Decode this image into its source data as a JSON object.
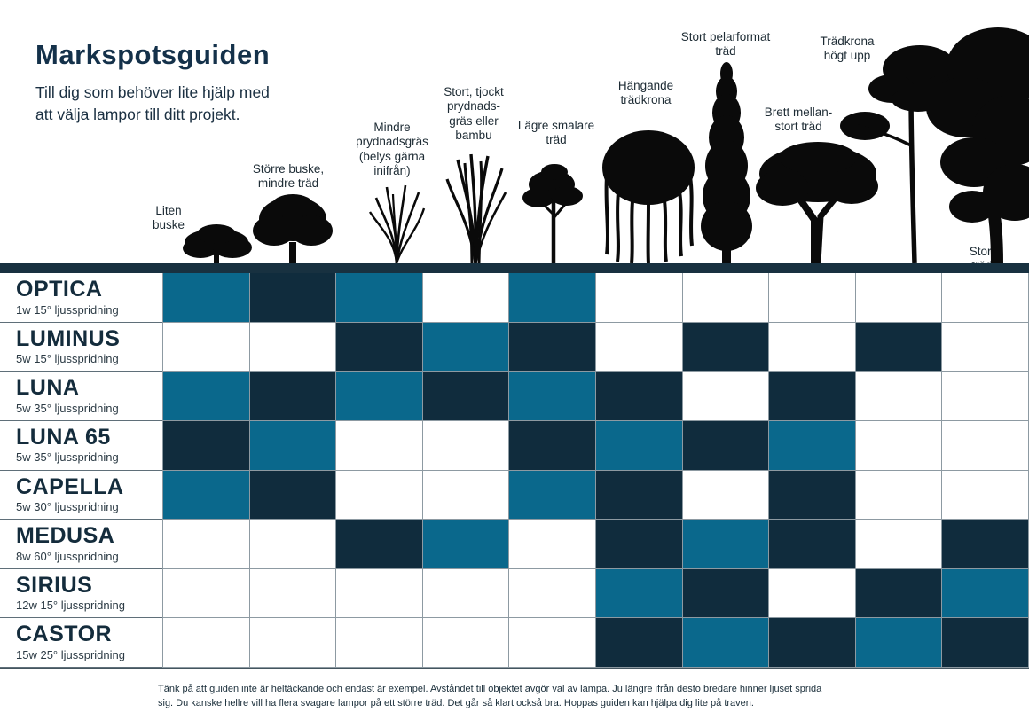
{
  "header": {
    "title": "Markspotsguiden",
    "subtitle": "Till dig som behöver lite hjälp med\natt välja lampor till ditt projekt."
  },
  "colors": {
    "teal": "#0a688c",
    "dark": "#102c3d",
    "white": "#ffffff",
    "bar": "#183140",
    "title_text": "#14314a"
  },
  "columns": [
    {
      "label": "Liten\nbuske",
      "icon": "small-bush-icon"
    },
    {
      "label": "Större buske,\nmindre träd",
      "icon": "large-bush-small-tree-icon"
    },
    {
      "label": "Mindre\nprydnadsgräs\n(belys gärna\ninifrån)",
      "icon": "small-ornamental-grass-icon"
    },
    {
      "label": "Stort, tjockt\nprydnads-\ngräs eller\nbambu",
      "icon": "large-grass-bamboo-icon"
    },
    {
      "label": "Lägre smalare\nträd",
      "icon": "low-narrow-tree-icon"
    },
    {
      "label": "Hängande\nträdkrona",
      "icon": "weeping-tree-icon"
    },
    {
      "label": "Stort pelarformat\nträd",
      "icon": "columnar-tree-icon"
    },
    {
      "label": "Brett mellan-\nstort träd",
      "icon": "broad-medium-tree-icon"
    },
    {
      "label": "Trädkrona\nhögt upp",
      "icon": "high-crown-tree-icon"
    },
    {
      "label": "Stort träd",
      "icon": "large-tree-icon"
    }
  ],
  "rows": [
    {
      "name": "OPTICA",
      "spec": "1w 15° ljusspridning"
    },
    {
      "name": "LUMINUS",
      "spec": "5w 15° ljusspridning"
    },
    {
      "name": "LUNA",
      "spec": "5w 35° ljusspridning"
    },
    {
      "name": "LUNA 65",
      "spec": "5w 35° ljusspridning"
    },
    {
      "name": "CAPELLA",
      "spec": "5w 30° ljusspridning"
    },
    {
      "name": "MEDUSA",
      "spec": "8w 60° ljusspridning"
    },
    {
      "name": "SIRIUS",
      "spec": "12w 15° ljusspridning"
    },
    {
      "name": "CASTOR",
      "spec": "15w 25° ljusspridning"
    }
  ],
  "chart_data": {
    "type": "heatmap",
    "title": "Markspotsguiden",
    "columns": [
      "Liten buske",
      "Större buske, mindre träd",
      "Mindre prydnadsgräs (belys gärna inifrån)",
      "Stort, tjockt prydnadsgräs eller bambu",
      "Lägre smalare träd",
      "Hängande trädkrona",
      "Stort pelarformat träd",
      "Brett mellanstort träd",
      "Trädkrona högt upp",
      "Stort träd"
    ],
    "rows": [
      "OPTICA 1w 15°",
      "LUMINUS 5w 15°",
      "LUNA 5w 35°",
      "LUNA 65 5w 35°",
      "CAPELLA 5w 30°",
      "MEDUSA 8w 60°",
      "SIRIUS 12w 15°",
      "CASTOR 15w 25°"
    ],
    "cell_states": [
      "teal",
      "dark",
      "white"
    ],
    "matrix": [
      [
        "teal",
        "dark",
        "teal",
        "white",
        "teal",
        "white",
        "white",
        "white",
        "white",
        "white"
      ],
      [
        "white",
        "white",
        "dark",
        "teal",
        "dark",
        "white",
        "dark",
        "white",
        "dark",
        "white"
      ],
      [
        "teal",
        "dark",
        "teal",
        "dark",
        "teal",
        "dark",
        "white",
        "dark",
        "white",
        "white"
      ],
      [
        "dark",
        "teal",
        "white",
        "white",
        "dark",
        "teal",
        "dark",
        "teal",
        "white",
        "white"
      ],
      [
        "teal",
        "dark",
        "white",
        "white",
        "teal",
        "dark",
        "white",
        "dark",
        "white",
        "white"
      ],
      [
        "white",
        "white",
        "dark",
        "teal",
        "white",
        "dark",
        "teal",
        "dark",
        "white",
        "dark"
      ],
      [
        "white",
        "white",
        "white",
        "white",
        "white",
        "teal",
        "dark",
        "white",
        "dark",
        "teal"
      ],
      [
        "white",
        "white",
        "white",
        "white",
        "white",
        "dark",
        "teal",
        "dark",
        "teal",
        "dark"
      ]
    ]
  },
  "footer": {
    "text": "Tänk på att guiden inte är heltäckande och endast är exempel. Avståndet till objektet avgör val av lampa. Ju längre ifrån desto bredare hinner ljuset sprida\nsig. Du kanske hellre vill ha flera svagare lampor på ett större träd. Det går så klart också bra. Hoppas guiden kan hjälpa dig lite på traven."
  }
}
